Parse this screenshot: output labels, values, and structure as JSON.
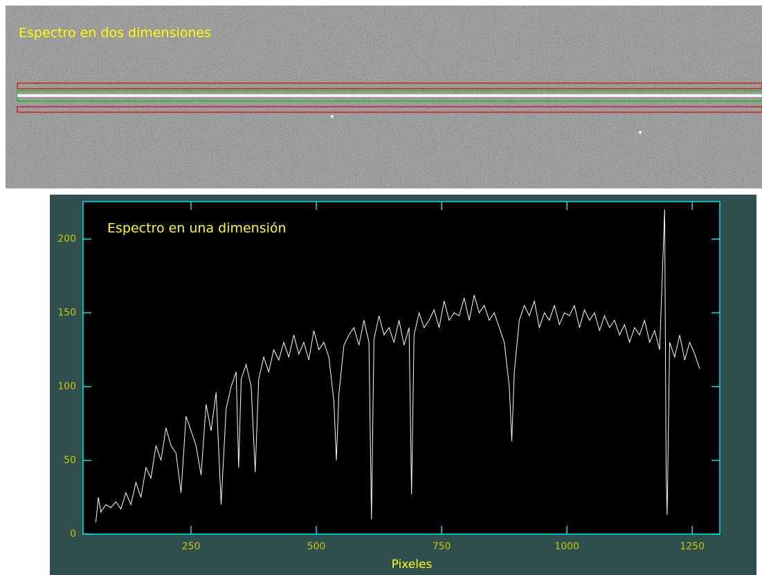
{
  "image": {
    "label": "Espectro en dos dimensiones"
  },
  "chart_data": {
    "type": "line",
    "title": "Espectro en una dimensión",
    "x_label": "Pixeles",
    "x": [
      60,
      65,
      70,
      80,
      90,
      100,
      110,
      120,
      130,
      140,
      150,
      160,
      170,
      180,
      190,
      200,
      210,
      220,
      230,
      240,
      250,
      260,
      270,
      280,
      290,
      300,
      310,
      320,
      330,
      340,
      345,
      350,
      360,
      370,
      378,
      385,
      395,
      405,
      415,
      425,
      435,
      445,
      455,
      465,
      475,
      485,
      495,
      505,
      515,
      525,
      535,
      540,
      545,
      555,
      565,
      575,
      585,
      595,
      605,
      610,
      615,
      625,
      635,
      645,
      655,
      665,
      675,
      685,
      690,
      695,
      705,
      715,
      725,
      735,
      745,
      755,
      765,
      775,
      785,
      795,
      805,
      815,
      825,
      835,
      845,
      855,
      865,
      875,
      885,
      890,
      895,
      905,
      915,
      925,
      935,
      945,
      955,
      965,
      975,
      985,
      995,
      1005,
      1015,
      1025,
      1035,
      1045,
      1055,
      1065,
      1075,
      1085,
      1095,
      1105,
      1115,
      1125,
      1135,
      1145,
      1155,
      1165,
      1175,
      1185,
      1195,
      1198,
      1200,
      1205,
      1215,
      1225,
      1235,
      1245,
      1255,
      1265
    ],
    "values": [
      8,
      25,
      15,
      20,
      18,
      22,
      17,
      28,
      20,
      35,
      25,
      45,
      38,
      60,
      50,
      72,
      60,
      55,
      28,
      80,
      70,
      60,
      40,
      88,
      70,
      96,
      20,
      85,
      100,
      110,
      45,
      105,
      115,
      100,
      42,
      105,
      120,
      110,
      125,
      118,
      130,
      120,
      135,
      122,
      130,
      118,
      138,
      125,
      130,
      120,
      90,
      50,
      95,
      128,
      135,
      140,
      128,
      145,
      130,
      10,
      132,
      148,
      135,
      140,
      130,
      145,
      128,
      140,
      27,
      135,
      150,
      140,
      145,
      152,
      140,
      158,
      145,
      150,
      148,
      160,
      145,
      162,
      150,
      155,
      145,
      150,
      140,
      130,
      100,
      63,
      110,
      145,
      155,
      148,
      158,
      140,
      150,
      145,
      155,
      142,
      150,
      148,
      155,
      140,
      152,
      145,
      150,
      138,
      148,
      140,
      145,
      135,
      142,
      130,
      140,
      135,
      145,
      130,
      138,
      125,
      220,
      40,
      13,
      130,
      120,
      135,
      118,
      130,
      122,
      112
    ],
    "color": "#ffffff",
    "xlim": [
      34.5,
      1305
    ],
    "ylim": [
      0,
      225.4
    ],
    "xticks": [
      250,
      500,
      750,
      1000,
      1250
    ],
    "yticks": [
      0,
      50,
      100,
      150,
      200
    ]
  }
}
